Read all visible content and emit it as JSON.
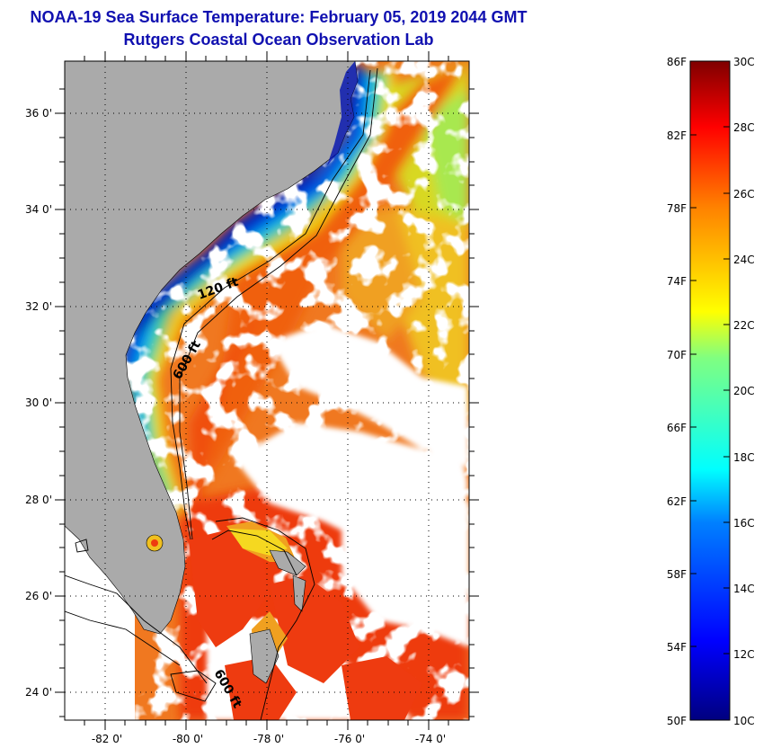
{
  "header": {
    "title": "NOAA-19 Sea Surface Temperature:  February 05, 2019 2044 GMT",
    "subtitle": "Rutgers Coastal Ocean Observation Lab"
  },
  "map": {
    "lon_range": [
      -83,
      -73
    ],
    "lat_range": [
      23,
      37
    ],
    "lat_ticks": [
      "36 0'",
      "34 0'",
      "32 0'",
      "30 0'",
      "28 0'",
      "26 0'",
      "24 0'"
    ],
    "lon_ticks": [
      "-82 0'",
      "-80 0'",
      "-78 0'",
      "-76 0'",
      "-74 0'"
    ],
    "contour_labels": [
      "120 ft",
      "600 ft",
      "600 ft"
    ],
    "colors": {
      "land": "#aaaaaa",
      "cloud": "#ffffff",
      "frame": "#000000"
    }
  },
  "colorbar": {
    "fahrenheit_labels": [
      "86F",
      "82F",
      "78F",
      "74F",
      "70F",
      "66F",
      "62F",
      "58F",
      "54F",
      "50F"
    ],
    "celsius_labels": [
      "30C",
      "28C",
      "26C",
      "24C",
      "22C",
      "20C",
      "18C",
      "16C",
      "14C",
      "12C",
      "10C"
    ],
    "range_c": [
      10,
      30
    ],
    "range_f": [
      50,
      86
    ]
  }
}
